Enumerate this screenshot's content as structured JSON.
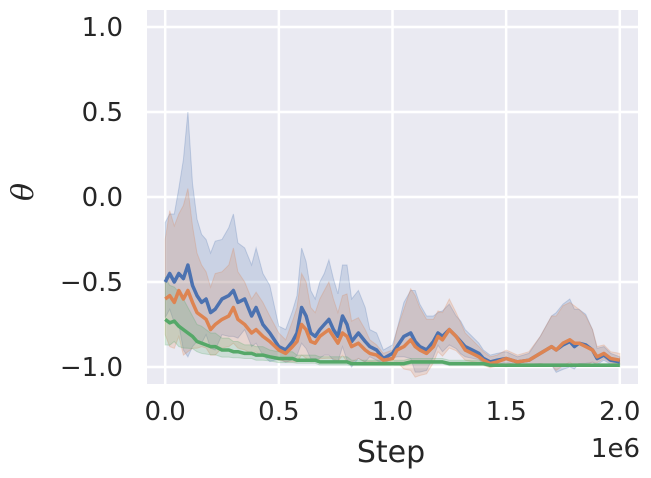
{
  "chart_data": {
    "type": "line",
    "xlabel": "Step",
    "ylabel": "θ",
    "x_offset_label": "1e6",
    "xlim": [
      -0.08,
      2.08
    ],
    "ylim": [
      -1.1,
      1.1
    ],
    "x_ticks": [
      0.0,
      0.5,
      1.0,
      1.5,
      2.0
    ],
    "x_tick_labels": [
      "0.0",
      "0.5",
      "1.0",
      "1.5",
      "2.0"
    ],
    "y_ticks": [
      -1.0,
      -0.5,
      0.0,
      0.5,
      1.0
    ],
    "y_tick_labels": [
      "−1.0",
      "−0.5",
      "0.0",
      "0.5",
      "1.0"
    ],
    "grid": true,
    "background": "#eaeaf2",
    "series": [
      {
        "color": "#4c72b0",
        "x": [
          0.0,
          0.02,
          0.04,
          0.06,
          0.08,
          0.1,
          0.12,
          0.14,
          0.16,
          0.18,
          0.2,
          0.22,
          0.25,
          0.28,
          0.3,
          0.32,
          0.35,
          0.38,
          0.4,
          0.43,
          0.46,
          0.5,
          0.53,
          0.56,
          0.58,
          0.6,
          0.62,
          0.64,
          0.66,
          0.68,
          0.7,
          0.72,
          0.74,
          0.76,
          0.78,
          0.8,
          0.82,
          0.85,
          0.88,
          0.9,
          0.93,
          0.96,
          1.0,
          1.02,
          1.05,
          1.08,
          1.1,
          1.12,
          1.15,
          1.18,
          1.2,
          1.22,
          1.25,
          1.28,
          1.3,
          1.32,
          1.35,
          1.38,
          1.4,
          1.43,
          1.46,
          1.5,
          1.55,
          1.6,
          1.65,
          1.7,
          1.72,
          1.75,
          1.78,
          1.8,
          1.82,
          1.85,
          1.88,
          1.9,
          1.93,
          1.96,
          2.0
        ],
        "y": [
          -0.5,
          -0.45,
          -0.5,
          -0.45,
          -0.48,
          -0.4,
          -0.52,
          -0.58,
          -0.62,
          -0.6,
          -0.68,
          -0.66,
          -0.6,
          -0.58,
          -0.55,
          -0.62,
          -0.6,
          -0.7,
          -0.65,
          -0.75,
          -0.8,
          -0.88,
          -0.9,
          -0.85,
          -0.8,
          -0.65,
          -0.7,
          -0.8,
          -0.82,
          -0.78,
          -0.75,
          -0.72,
          -0.78,
          -0.82,
          -0.7,
          -0.75,
          -0.85,
          -0.8,
          -0.85,
          -0.88,
          -0.9,
          -0.95,
          -0.92,
          -0.88,
          -0.82,
          -0.8,
          -0.85,
          -0.88,
          -0.9,
          -0.85,
          -0.8,
          -0.82,
          -0.78,
          -0.82,
          -0.85,
          -0.88,
          -0.9,
          -0.92,
          -0.95,
          -0.97,
          -0.96,
          -0.95,
          -0.97,
          -0.96,
          -0.92,
          -0.88,
          -0.9,
          -0.87,
          -0.85,
          -0.88,
          -0.86,
          -0.87,
          -0.9,
          -0.95,
          -0.93,
          -0.96,
          -0.97
        ],
        "band": [
          0.35,
          0.35,
          0.4,
          0.5,
          0.7,
          0.9,
          0.6,
          0.45,
          0.4,
          0.35,
          0.35,
          0.4,
          0.35,
          0.4,
          0.45,
          0.35,
          0.3,
          0.3,
          0.35,
          0.3,
          0.28,
          0.12,
          0.12,
          0.18,
          0.22,
          0.35,
          0.32,
          0.25,
          0.22,
          0.28,
          0.3,
          0.35,
          0.3,
          0.25,
          0.3,
          0.35,
          0.25,
          0.25,
          0.2,
          0.1,
          0.1,
          0.05,
          0.05,
          0.1,
          0.2,
          0.25,
          0.3,
          0.25,
          0.2,
          0.15,
          0.12,
          0.15,
          0.15,
          0.12,
          0.12,
          0.1,
          0.08,
          0.06,
          0.05,
          0.04,
          0.04,
          0.04,
          0.03,
          0.04,
          0.1,
          0.18,
          0.22,
          0.24,
          0.25,
          0.22,
          0.2,
          0.18,
          0.12,
          0.06,
          0.05,
          0.04,
          0.03
        ]
      },
      {
        "color": "#dd8452",
        "x": [
          0.0,
          0.02,
          0.04,
          0.06,
          0.08,
          0.1,
          0.12,
          0.14,
          0.16,
          0.18,
          0.2,
          0.22,
          0.25,
          0.28,
          0.3,
          0.32,
          0.35,
          0.38,
          0.4,
          0.43,
          0.46,
          0.5,
          0.53,
          0.56,
          0.58,
          0.6,
          0.62,
          0.64,
          0.66,
          0.68,
          0.7,
          0.72,
          0.74,
          0.76,
          0.78,
          0.8,
          0.82,
          0.85,
          0.88,
          0.9,
          0.93,
          0.96,
          1.0,
          1.02,
          1.05,
          1.08,
          1.1,
          1.12,
          1.15,
          1.18,
          1.2,
          1.22,
          1.25,
          1.28,
          1.3,
          1.32,
          1.35,
          1.38,
          1.4,
          1.43,
          1.46,
          1.5,
          1.55,
          1.6,
          1.65,
          1.7,
          1.72,
          1.75,
          1.78,
          1.8,
          1.82,
          1.85,
          1.88,
          1.9,
          1.93,
          1.96,
          2.0
        ],
        "y": [
          -0.6,
          -0.58,
          -0.62,
          -0.55,
          -0.6,
          -0.55,
          -0.62,
          -0.68,
          -0.7,
          -0.72,
          -0.78,
          -0.75,
          -0.72,
          -0.7,
          -0.65,
          -0.72,
          -0.75,
          -0.8,
          -0.78,
          -0.82,
          -0.85,
          -0.9,
          -0.92,
          -0.88,
          -0.85,
          -0.75,
          -0.78,
          -0.85,
          -0.86,
          -0.82,
          -0.8,
          -0.78,
          -0.82,
          -0.86,
          -0.8,
          -0.82,
          -0.88,
          -0.86,
          -0.9,
          -0.92,
          -0.93,
          -0.96,
          -0.95,
          -0.9,
          -0.88,
          -0.84,
          -0.88,
          -0.9,
          -0.92,
          -0.88,
          -0.82,
          -0.84,
          -0.78,
          -0.82,
          -0.86,
          -0.9,
          -0.92,
          -0.94,
          -0.96,
          -0.98,
          -0.97,
          -0.95,
          -0.97,
          -0.96,
          -0.92,
          -0.88,
          -0.9,
          -0.86,
          -0.84,
          -0.86,
          -0.86,
          -0.88,
          -0.9,
          -0.94,
          -0.92,
          -0.95,
          -0.96
        ],
        "band": [
          0.35,
          0.5,
          0.45,
          0.45,
          0.55,
          0.6,
          0.45,
          0.35,
          0.3,
          0.28,
          0.25,
          0.3,
          0.28,
          0.3,
          0.35,
          0.28,
          0.25,
          0.2,
          0.22,
          0.2,
          0.15,
          0.1,
          0.08,
          0.15,
          0.2,
          0.3,
          0.28,
          0.2,
          0.18,
          0.22,
          0.25,
          0.28,
          0.22,
          0.18,
          0.22,
          0.25,
          0.15,
          0.15,
          0.12,
          0.08,
          0.06,
          0.04,
          0.05,
          0.12,
          0.22,
          0.3,
          0.3,
          0.25,
          0.2,
          0.16,
          0.15,
          0.16,
          0.18,
          0.14,
          0.12,
          0.1,
          0.08,
          0.06,
          0.05,
          0.04,
          0.04,
          0.05,
          0.04,
          0.05,
          0.1,
          0.18,
          0.2,
          0.22,
          0.22,
          0.22,
          0.2,
          0.18,
          0.12,
          0.06,
          0.05,
          0.04,
          0.04
        ]
      },
      {
        "color": "#55a868",
        "x": [
          0.0,
          0.02,
          0.04,
          0.06,
          0.08,
          0.1,
          0.12,
          0.14,
          0.16,
          0.18,
          0.2,
          0.22,
          0.25,
          0.28,
          0.3,
          0.32,
          0.35,
          0.38,
          0.4,
          0.43,
          0.46,
          0.5,
          0.53,
          0.56,
          0.58,
          0.6,
          0.62,
          0.64,
          0.66,
          0.68,
          0.7,
          0.72,
          0.74,
          0.76,
          0.78,
          0.8,
          0.82,
          0.85,
          0.88,
          0.9,
          0.93,
          0.96,
          1.0,
          1.02,
          1.05,
          1.08,
          1.1,
          1.12,
          1.15,
          1.18,
          1.2,
          1.22,
          1.25,
          1.28,
          1.3,
          1.32,
          1.35,
          1.38,
          1.4,
          1.43,
          1.46,
          1.5,
          1.55,
          1.6,
          1.65,
          1.7,
          1.72,
          1.75,
          1.78,
          1.8,
          1.82,
          1.85,
          1.88,
          1.9,
          1.93,
          1.96,
          2.0
        ],
        "y": [
          -0.72,
          -0.74,
          -0.73,
          -0.76,
          -0.78,
          -0.8,
          -0.82,
          -0.85,
          -0.86,
          -0.87,
          -0.88,
          -0.88,
          -0.9,
          -0.9,
          -0.91,
          -0.91,
          -0.92,
          -0.92,
          -0.93,
          -0.93,
          -0.94,
          -0.95,
          -0.95,
          -0.95,
          -0.96,
          -0.96,
          -0.96,
          -0.96,
          -0.96,
          -0.97,
          -0.97,
          -0.97,
          -0.97,
          -0.97,
          -0.97,
          -0.97,
          -0.98,
          -0.98,
          -0.98,
          -0.98,
          -0.98,
          -0.98,
          -0.98,
          -0.98,
          -0.98,
          -0.97,
          -0.97,
          -0.97,
          -0.97,
          -0.97,
          -0.97,
          -0.97,
          -0.98,
          -0.98,
          -0.98,
          -0.98,
          -0.98,
          -0.98,
          -0.98,
          -0.99,
          -0.99,
          -0.99,
          -0.99,
          -0.99,
          -0.99,
          -0.99,
          -0.99,
          -0.99,
          -0.99,
          -0.99,
          -0.99,
          -0.99,
          -0.99,
          -0.99,
          -0.99,
          -0.99,
          -0.99
        ],
        "band": [
          0.25,
          0.22,
          0.2,
          0.2,
          0.18,
          0.15,
          0.12,
          0.1,
          0.1,
          0.09,
          0.08,
          0.08,
          0.07,
          0.07,
          0.06,
          0.06,
          0.05,
          0.05,
          0.05,
          0.05,
          0.04,
          0.04,
          0.04,
          0.04,
          0.03,
          0.03,
          0.03,
          0.03,
          0.03,
          0.03,
          0.03,
          0.03,
          0.03,
          0.03,
          0.03,
          0.03,
          0.02,
          0.02,
          0.02,
          0.02,
          0.02,
          0.02,
          0.02,
          0.02,
          0.02,
          0.02,
          0.02,
          0.02,
          0.02,
          0.02,
          0.02,
          0.02,
          0.02,
          0.02,
          0.02,
          0.02,
          0.02,
          0.02,
          0.02,
          0.01,
          0.01,
          0.01,
          0.01,
          0.01,
          0.01,
          0.01,
          0.01,
          0.01,
          0.01,
          0.01,
          0.01,
          0.01,
          0.01,
          0.01,
          0.01,
          0.01,
          0.01
        ]
      }
    ]
  }
}
